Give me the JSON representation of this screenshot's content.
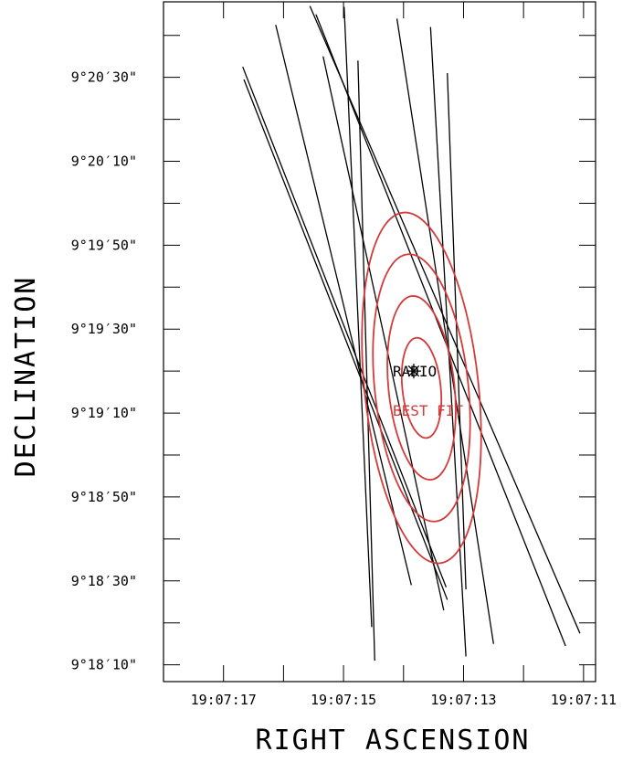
{
  "chart_data": {
    "type": "line",
    "xlabel": "RIGHT ASCENSION",
    "ylabel": "DECLINATION",
    "x_ticks": [
      {
        "value": 17,
        "label": "19:07:17"
      },
      {
        "value": 15,
        "label": "19:07:15"
      },
      {
        "value": 13,
        "label": "19:07:13"
      },
      {
        "value": 11,
        "label": "19:07:11"
      }
    ],
    "y_ticks": [
      {
        "value": 10,
        "label": "9°18′10\""
      },
      {
        "value": 30,
        "label": "9°18′30\""
      },
      {
        "value": 50,
        "label": "9°18′50\""
      },
      {
        "value": 70,
        "label": "9°19′10\""
      },
      {
        "value": 90,
        "label": "9°19′30\""
      },
      {
        "value": 110,
        "label": "9°19′50\""
      },
      {
        "value": 130,
        "label": "9°20′10\""
      },
      {
        "value": 150,
        "label": "9°20′30\""
      }
    ],
    "xlim": [
      18,
      10.8
    ],
    "ylim": [
      6,
      168
    ],
    "minor_x_step": 1,
    "minor_y_step": 10,
    "timing_lines": [
      {
        "x1": 16.68,
        "y1": 152.5,
        "x2": 13.29,
        "y2": 28.5
      },
      {
        "x1": 16.66,
        "y1": 149.5,
        "x2": 13.27,
        "y2": 25.5
      },
      {
        "x1": 16.13,
        "y1": 162.5,
        "x2": 13.87,
        "y2": 29.0
      },
      {
        "x1": 14.99,
        "y1": 166.8,
        "x2": 14.53,
        "y2": 19.0
      },
      {
        "x1": 14.76,
        "y1": 154.0,
        "x2": 14.48,
        "y2": 11.0
      },
      {
        "x1": 15.34,
        "y1": 155.0,
        "x2": 13.33,
        "y2": 23.0
      },
      {
        "x1": 14.11,
        "y1": 164.0,
        "x2": 12.5,
        "y2": 15.0
      },
      {
        "x1": 13.55,
        "y1": 162.0,
        "x2": 12.96,
        "y2": 12.0
      },
      {
        "x1": 13.27,
        "y1": 151.0,
        "x2": 12.96,
        "y2": 28.0
      },
      {
        "x1": 15.46,
        "y1": 165.0,
        "x2": 11.3,
        "y2": 14.5
      },
      {
        "x1": 15.56,
        "y1": 167.0,
        "x2": 11.06,
        "y2": 17.5
      }
    ],
    "radio_position": {
      "x": 13.83,
      "y": 80
    },
    "best_fit": {
      "center": {
        "x": 13.7,
        "y": 76
      },
      "contours": [
        {
          "rx": 0.95,
          "ry": 42
        },
        {
          "rx": 0.78,
          "ry": 32
        },
        {
          "rx": 0.55,
          "ry": 22
        },
        {
          "rx": 0.32,
          "ry": 12
        }
      ],
      "rotation_deg": -6,
      "color": "#d43a3a"
    },
    "annotations": {
      "radio_label": "RADIO",
      "best_fit_label": "BEST FIT"
    },
    "line_color": "#000000",
    "grid": false
  }
}
